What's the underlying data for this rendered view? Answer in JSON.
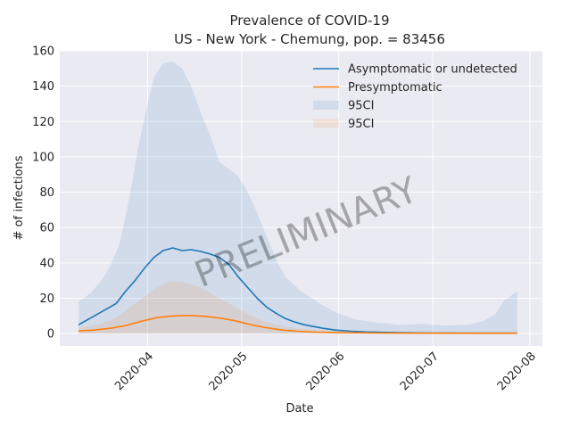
{
  "chart_data": {
    "type": "line",
    "title": "Prevalence of COVID-19",
    "subtitle": "US - New York - Chemung, pop. = 83456",
    "xlabel": "Date",
    "ylabel": "# of infections",
    "xlim": [
      "2020-03-04",
      "2020-08-05"
    ],
    "ylim": [
      -7,
      160
    ],
    "y_ticks": [
      0,
      20,
      40,
      60,
      80,
      100,
      120,
      140,
      160
    ],
    "x_ticks": [
      "2020-04-01",
      "2020-05-01",
      "2020-06-01",
      "2020-07-01",
      "2020-08-01"
    ],
    "x_tick_labels": [
      "2020-04",
      "2020-05",
      "2020-06",
      "2020-07",
      "2020-08"
    ],
    "grid": true,
    "legend_position": "top-right",
    "watermark": "PRELIMINARY",
    "series": [
      {
        "name": "Asymptomatic or undetected",
        "color": "#1f77b4",
        "points": [
          [
            "2020-03-10",
            5
          ],
          [
            "2020-03-13",
            8
          ],
          [
            "2020-03-16",
            11
          ],
          [
            "2020-03-19",
            14
          ],
          [
            "2020-03-22",
            17
          ],
          [
            "2020-03-25",
            24
          ],
          [
            "2020-03-28",
            30
          ],
          [
            "2020-03-31",
            37
          ],
          [
            "2020-04-03",
            43
          ],
          [
            "2020-04-06",
            47
          ],
          [
            "2020-04-09",
            48.5
          ],
          [
            "2020-04-12",
            47
          ],
          [
            "2020-04-15",
            47.5
          ],
          [
            "2020-04-18",
            46.5
          ],
          [
            "2020-04-21",
            45
          ],
          [
            "2020-04-24",
            43
          ],
          [
            "2020-04-27",
            39
          ],
          [
            "2020-04-30",
            32
          ],
          [
            "2020-05-03",
            26
          ],
          [
            "2020-05-06",
            20
          ],
          [
            "2020-05-09",
            15
          ],
          [
            "2020-05-12",
            11.5
          ],
          [
            "2020-05-15",
            8.5
          ],
          [
            "2020-05-18",
            6.5
          ],
          [
            "2020-05-21",
            5
          ],
          [
            "2020-05-24",
            4
          ],
          [
            "2020-05-27",
            3
          ],
          [
            "2020-05-31",
            2
          ],
          [
            "2020-06-05",
            1.3
          ],
          [
            "2020-06-10",
            0.9
          ],
          [
            "2020-06-20",
            0.5
          ],
          [
            "2020-07-01",
            0.3
          ],
          [
            "2020-07-15",
            0.2
          ],
          [
            "2020-07-28",
            0.2
          ]
        ]
      },
      {
        "name": "Presymptomatic",
        "color": "#ff7f0e",
        "points": [
          [
            "2020-03-10",
            1.5
          ],
          [
            "2020-03-15",
            2
          ],
          [
            "2020-03-20",
            3
          ],
          [
            "2020-03-25",
            4.5
          ],
          [
            "2020-03-30",
            7
          ],
          [
            "2020-04-04",
            9
          ],
          [
            "2020-04-09",
            10
          ],
          [
            "2020-04-14",
            10.3
          ],
          [
            "2020-04-19",
            9.8
          ],
          [
            "2020-04-24",
            8.8
          ],
          [
            "2020-04-29",
            7.3
          ],
          [
            "2020-05-04",
            5
          ],
          [
            "2020-05-09",
            3.3
          ],
          [
            "2020-05-14",
            2
          ],
          [
            "2020-05-19",
            1.3
          ],
          [
            "2020-05-25",
            0.8
          ],
          [
            "2020-06-01",
            0.5
          ],
          [
            "2020-06-15",
            0.3
          ],
          [
            "2020-07-01",
            0.2
          ],
          [
            "2020-07-28",
            0.2
          ]
        ]
      }
    ],
    "bands": [
      {
        "name": "95CI",
        "color": "#1f77b4",
        "upper": [
          [
            "2020-03-10",
            18
          ],
          [
            "2020-03-14",
            23
          ],
          [
            "2020-03-18",
            32
          ],
          [
            "2020-03-20",
            38
          ],
          [
            "2020-03-23",
            50
          ],
          [
            "2020-03-26",
            75
          ],
          [
            "2020-03-29",
            105
          ],
          [
            "2020-04-01",
            130
          ],
          [
            "2020-04-03",
            145
          ],
          [
            "2020-04-06",
            153
          ],
          [
            "2020-04-09",
            154
          ],
          [
            "2020-04-12",
            150
          ],
          [
            "2020-04-15",
            140
          ],
          [
            "2020-04-18",
            125
          ],
          [
            "2020-04-21",
            112
          ],
          [
            "2020-04-24",
            97
          ],
          [
            "2020-04-27",
            93
          ],
          [
            "2020-04-30",
            89
          ],
          [
            "2020-05-03",
            80
          ],
          [
            "2020-05-06",
            68
          ],
          [
            "2020-05-09",
            55
          ],
          [
            "2020-05-12",
            42
          ],
          [
            "2020-05-15",
            32
          ],
          [
            "2020-05-20",
            24
          ],
          [
            "2020-05-26",
            17
          ],
          [
            "2020-05-31",
            12
          ],
          [
            "2020-06-06",
            8
          ],
          [
            "2020-06-12",
            6.5
          ],
          [
            "2020-06-20",
            5
          ],
          [
            "2020-06-28",
            5.5
          ],
          [
            "2020-07-05",
            4.5
          ],
          [
            "2020-07-12",
            5
          ],
          [
            "2020-07-17",
            7
          ],
          [
            "2020-07-21",
            11
          ],
          [
            "2020-07-24",
            19
          ],
          [
            "2020-07-28",
            24
          ]
        ],
        "lower": [
          [
            "2020-03-10",
            0
          ],
          [
            "2020-07-28",
            0
          ]
        ]
      },
      {
        "name": "95CI",
        "color": "#ff7f0e",
        "upper": [
          [
            "2020-03-10",
            3
          ],
          [
            "2020-03-16",
            5
          ],
          [
            "2020-03-22",
            9
          ],
          [
            "2020-03-28",
            17
          ],
          [
            "2020-04-03",
            25
          ],
          [
            "2020-04-08",
            29.5
          ],
          [
            "2020-04-13",
            29
          ],
          [
            "2020-04-18",
            26
          ],
          [
            "2020-04-23",
            21
          ],
          [
            "2020-04-28",
            16
          ],
          [
            "2020-05-03",
            11
          ],
          [
            "2020-05-08",
            7
          ],
          [
            "2020-05-15",
            4
          ],
          [
            "2020-05-22",
            2.5
          ],
          [
            "2020-06-01",
            1.5
          ],
          [
            "2020-06-15",
            1
          ],
          [
            "2020-07-01",
            0.7
          ],
          [
            "2020-07-28",
            0.6
          ]
        ],
        "lower": [
          [
            "2020-03-10",
            0
          ],
          [
            "2020-07-28",
            0
          ]
        ]
      }
    ]
  }
}
